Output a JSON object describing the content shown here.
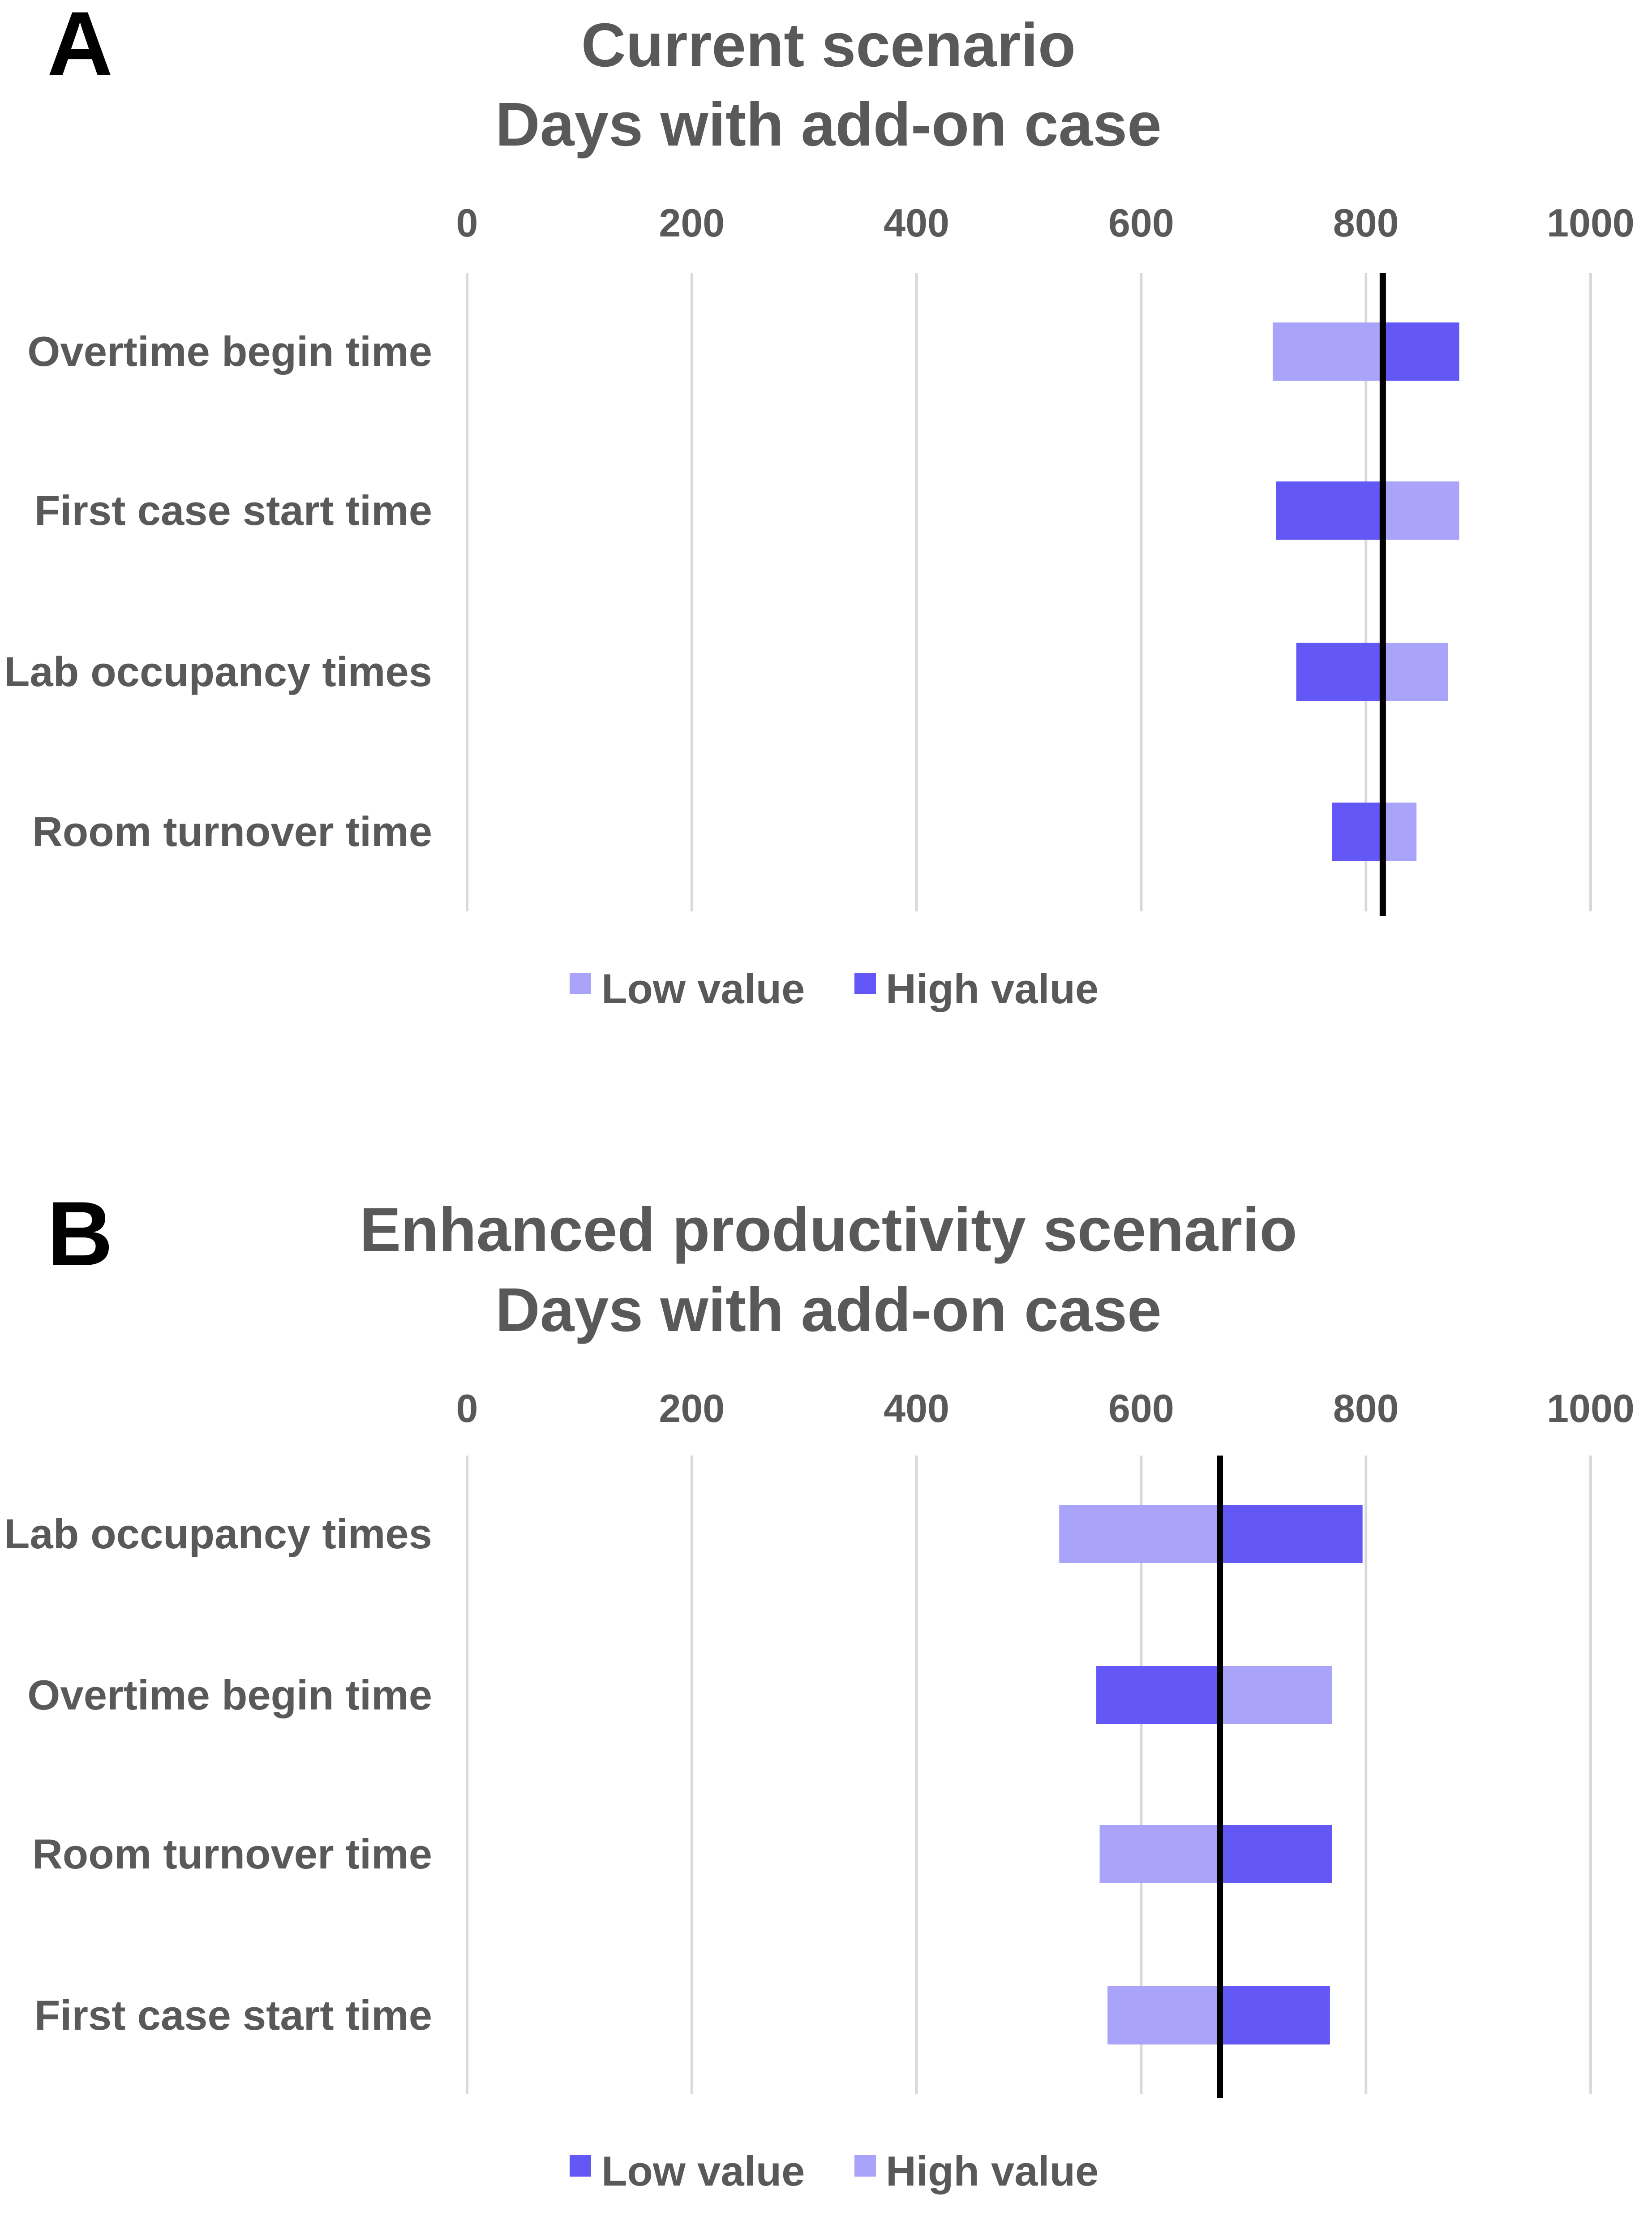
{
  "colors": {
    "light_purple": "#a9a3f9",
    "dark_purple": "#6357f5",
    "text_gray": "#595959",
    "grid_gray": "#d9d9d9",
    "baseline": "#000000"
  },
  "chart_data": [
    {
      "panel_label": "A",
      "type": "bar",
      "orientation": "horizontal",
      "subtype": "tornado",
      "title_lines": [
        "Current scenario",
        "Days with add-on case"
      ],
      "xlim": [
        0,
        1000
      ],
      "xticks": [
        0,
        200,
        400,
        600,
        800,
        1000
      ],
      "x_axis_position": "top",
      "grid": true,
      "baseline": 815,
      "categories": [
        "Overtime begin time",
        "First case start time",
        "Lab occupancy times",
        "Room turnover time"
      ],
      "series": [
        {
          "name": "Low value",
          "color": "#a9a3f9",
          "values": [
            717,
            883,
            873,
            845
          ]
        },
        {
          "name": "High value",
          "color": "#6357f5",
          "values": [
            883,
            720,
            738,
            770
          ]
        }
      ],
      "legend": {
        "position": "bottom",
        "entries": [
          {
            "label": "Low value",
            "color": "#a9a3f9"
          },
          {
            "label": "High value",
            "color": "#6357f5"
          }
        ]
      }
    },
    {
      "panel_label": "B",
      "type": "bar",
      "orientation": "horizontal",
      "subtype": "tornado",
      "title_lines": [
        "Enhanced productivity scenario",
        "Days with add-on case"
      ],
      "xlim": [
        0,
        1000
      ],
      "xticks": [
        0,
        200,
        400,
        600,
        800,
        1000
      ],
      "x_axis_position": "top",
      "grid": true,
      "baseline": 670,
      "categories": [
        "Lab occupancy times",
        "Overtime begin time",
        "Room turnover time",
        "First case start time"
      ],
      "series": [
        {
          "name": "Low value",
          "color": "#6357f5",
          "values": [
            797,
            560,
            770,
            768
          ]
        },
        {
          "name": "High value",
          "color": "#a9a3f9",
          "values": [
            527,
            770,
            563,
            570
          ]
        }
      ],
      "legend": {
        "position": "bottom",
        "entries": [
          {
            "label": "Low value",
            "color": "#6357f5"
          },
          {
            "label": "High value",
            "color": "#a9a3f9"
          }
        ]
      }
    }
  ]
}
